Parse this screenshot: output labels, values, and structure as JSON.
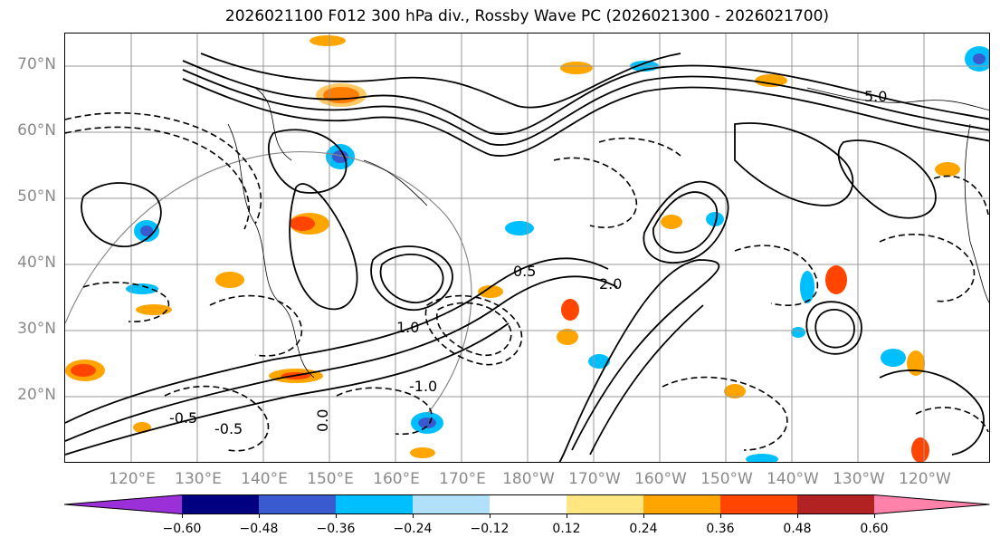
{
  "title": "2026021100 F012 300 hPa div., Rossby Wave PC (2026021300 - 2026021700)",
  "lat_labels": [
    "70°N",
    "60°N",
    "50°N",
    "40°N",
    "30°N",
    "20°N"
  ],
  "lon_labels": [
    "120°E",
    "130°E",
    "140°E",
    "150°E",
    "160°E",
    "170°E",
    "180°W",
    "170°W",
    "160°W",
    "150°W",
    "140°W",
    "130°W",
    "120°W"
  ],
  "colorbar": {
    "ticks": [
      "−0.60",
      "−0.48",
      "−0.36",
      "−0.24",
      "−0.12",
      "0.12",
      "0.24",
      "0.36",
      "0.48",
      "0.60"
    ],
    "colors": [
      "#9b30d8",
      "#000080",
      "#3a5bd0",
      "#00bfff",
      "#b0e0fa",
      "#ffffff",
      "#ffe680",
      "#ffa500",
      "#ff4500",
      "#b22222",
      "#ff82ab"
    ]
  },
  "contour_labels": [
    "5.0",
    "0.5",
    "1.0",
    "2.0",
    "-0.5",
    "-1.0",
    "-0.5",
    "0.0"
  ],
  "colors": {
    "gridline": "#999999",
    "axis_label": "#8a8a8a",
    "contour": "#000000",
    "coastline": "#000000"
  }
}
